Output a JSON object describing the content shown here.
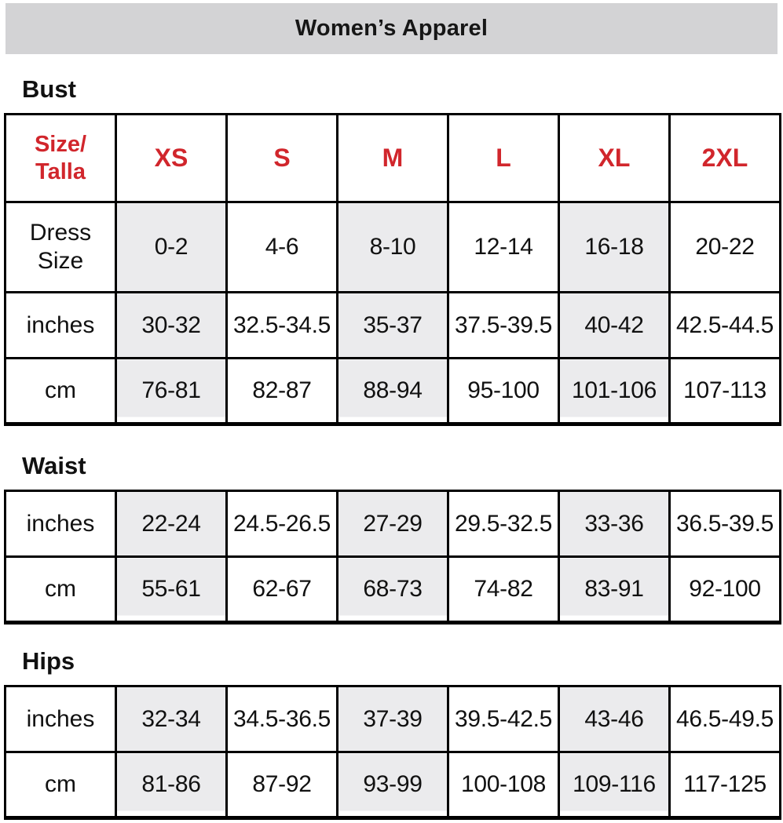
{
  "title": "Women’s Apparel",
  "size_header": {
    "corner_label": "Size/\nTalla",
    "sizes": [
      "XS",
      "S",
      "M",
      "L",
      "XL",
      "2XL"
    ]
  },
  "sections": [
    {
      "heading": "Bust",
      "rows": [
        {
          "label": "Dress\nSize",
          "values": [
            "0-2",
            "4-6",
            "8-10",
            "12-14",
            "16-18",
            "20-22"
          ]
        },
        {
          "label": "inches",
          "values": [
            "30-32",
            "32.5-34.5",
            "35-37",
            "37.5-39.5",
            "40-42",
            "42.5-44.5"
          ]
        },
        {
          "label": "cm",
          "values": [
            "76-81",
            "82-87",
            "88-94",
            "95-100",
            "101-106",
            "107-113"
          ]
        }
      ]
    },
    {
      "heading": "Waist",
      "rows": [
        {
          "label": "inches",
          "values": [
            "22-24",
            "24.5-26.5",
            "27-29",
            "29.5-32.5",
            "33-36",
            "36.5-39.5"
          ]
        },
        {
          "label": "cm",
          "values": [
            "55-61",
            "62-67",
            "68-73",
            "74-82",
            "83-91",
            "92-100"
          ]
        }
      ]
    },
    {
      "heading": "Hips",
      "rows": [
        {
          "label": "inches",
          "values": [
            "32-34",
            "34.5-36.5",
            "37-39",
            "39.5-42.5",
            "43-46",
            "46.5-49.5"
          ]
        },
        {
          "label": "cm",
          "values": [
            "81-86",
            "87-92",
            "93-99",
            "100-108",
            "109-116",
            "117-125"
          ]
        }
      ]
    }
  ],
  "colors": {
    "accent_red": "#d1262c",
    "shaded_cell": "#ebebed",
    "title_bar_bg": "#d3d3d5",
    "border": "#000000",
    "text": "#111111"
  }
}
